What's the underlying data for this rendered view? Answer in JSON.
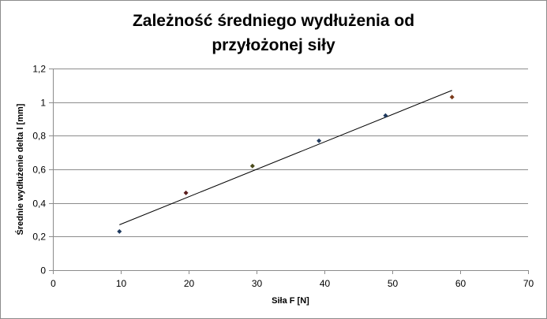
{
  "chart_data": {
    "type": "scatter",
    "title_lines": [
      "Zależność średniego wydłużenia od",
      "przyłożonej siły"
    ],
    "xlabel": "Siła F [N]",
    "ylabel": "Średnie wydłużenie delta l [mm]",
    "xlim": [
      0,
      70
    ],
    "ylim": [
      0,
      1.2
    ],
    "x_ticks": [
      "0",
      "10",
      "20",
      "30",
      "40",
      "50",
      "60",
      "70"
    ],
    "y_ticks": [
      "0",
      "0,2",
      "0,4",
      "0,6",
      "0,8",
      "1",
      "1,2"
    ],
    "grid": "horizontal major gridlines",
    "legend": "none",
    "series": [
      {
        "x": [
          9.8,
          19.6,
          29.4,
          39.2,
          49.0,
          58.8
        ],
        "y": [
          0.23,
          0.46,
          0.62,
          0.77,
          0.92,
          1.03
        ],
        "marker": "diamond",
        "colors": [
          "#1f3a5f",
          "#5a1e1e",
          "#4a4a1a",
          "#1f3a5f",
          "#1f3a5f",
          "#7a3a1a"
        ]
      }
    ],
    "trendline": {
      "type": "linear",
      "from": [
        9.8,
        0.27
      ],
      "to": [
        58.8,
        1.07
      ],
      "color": "#000000"
    },
    "colors": {
      "gridline": "#8c8c8c",
      "axis": "#8c8c8c"
    }
  }
}
